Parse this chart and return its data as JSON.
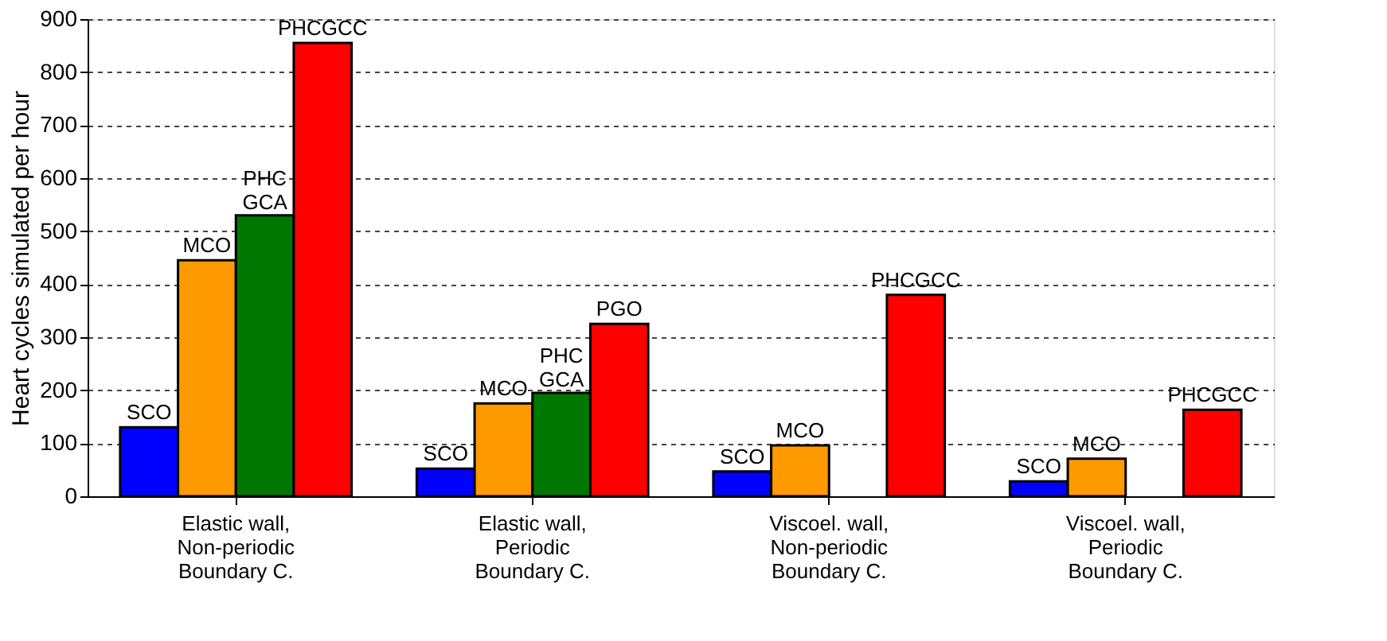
{
  "chart_data": {
    "type": "bar",
    "ylabel": "Heart cycles simulated per hour",
    "categories": [
      "Elastic wall,\nNon-periodic\nBoundary C.",
      "Elastic wall,\nPeriodic\nBoundary C.",
      "Viscoel. wall,\nNon-periodic\nBoundary C.",
      "Viscoel. wall,\nPeriodic\nBoundary C."
    ],
    "series": [
      {
        "color": "#0000ff",
        "values": [
          130,
          52,
          47,
          28
        ],
        "value_labels": [
          "SCO",
          "SCO",
          "SCO",
          "SCO"
        ]
      },
      {
        "color": "#ff9900",
        "values": [
          445,
          175,
          96,
          71
        ],
        "value_labels": [
          "MCO",
          "MCO",
          "MCO",
          "MCO"
        ]
      },
      {
        "color": "#007700",
        "values": [
          530,
          195,
          null,
          null
        ],
        "value_labels": [
          "PHC\nGCA",
          "PHC\nGCA",
          null,
          null
        ]
      },
      {
        "color": "#ff0000",
        "values": [
          855,
          325,
          380,
          163
        ],
        "value_labels": [
          "PHCGCC",
          "PGO",
          "PHCGCC",
          "PHCGCC"
        ]
      }
    ],
    "ylim": [
      0,
      900
    ],
    "yticks": [
      0,
      100,
      200,
      300,
      400,
      500,
      600,
      700,
      800,
      900
    ],
    "grid": "y",
    "legend": false
  }
}
